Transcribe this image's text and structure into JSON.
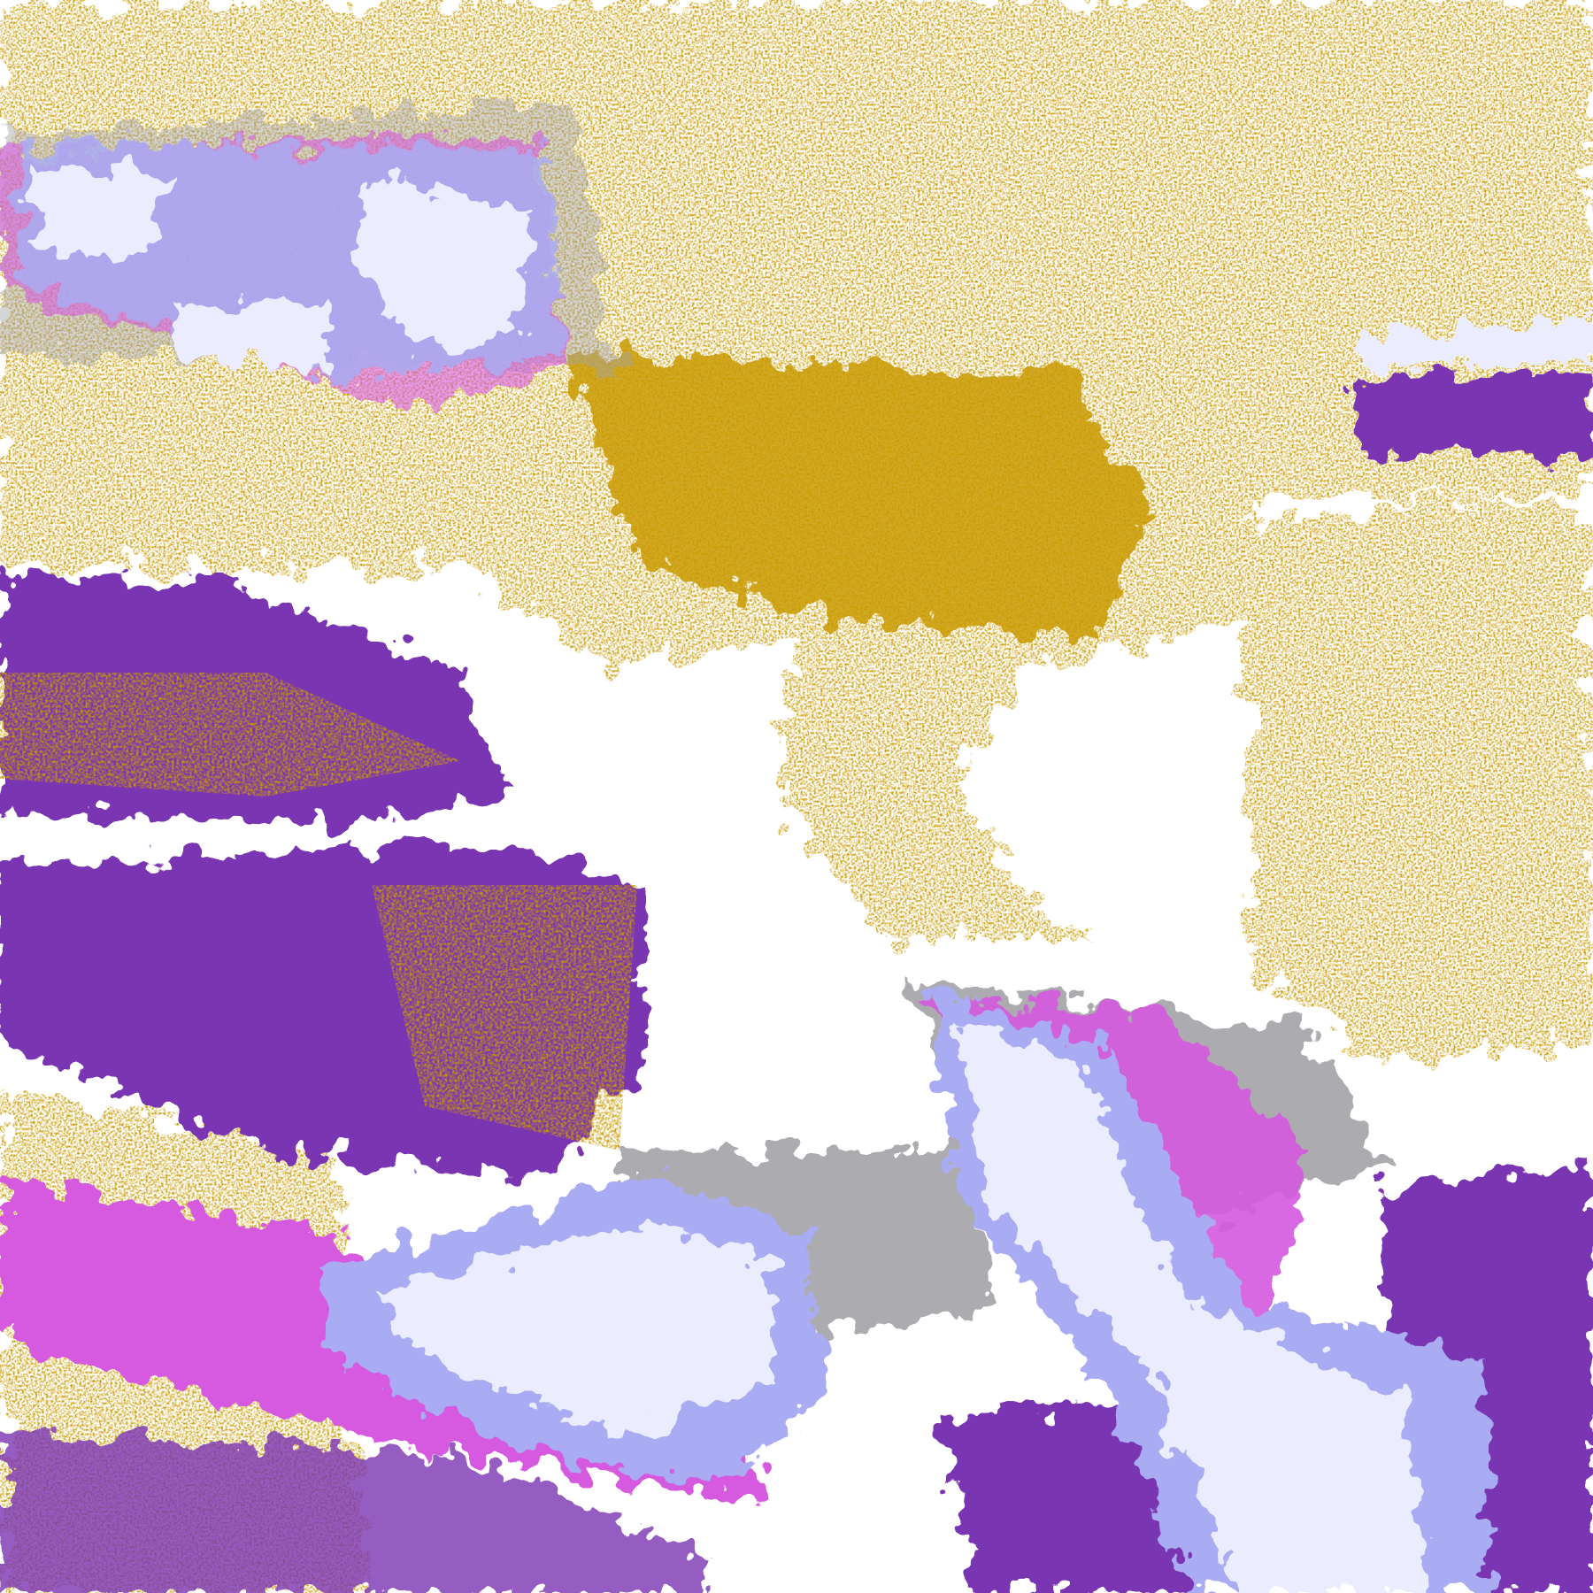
{
  "image": {
    "kind": "false-color satellite classification image",
    "palette": {
      "background": "#ffffff",
      "gold": "#c99a06",
      "purple": "#7a35b2",
      "magenta": "#d55ae0",
      "lavender": "#ececff",
      "periwinkle": "#a9acf2",
      "gray": "#a3a3a8"
    }
  }
}
